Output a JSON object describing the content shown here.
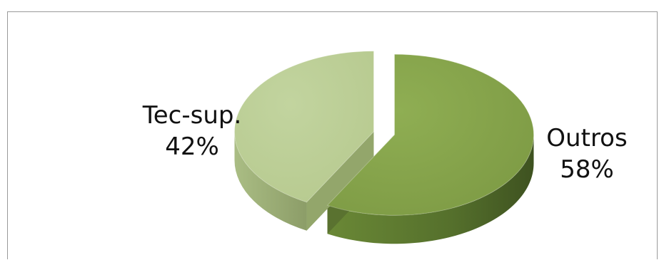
{
  "chart_data": {
    "type": "pie",
    "style": "3d exploded",
    "slices": [
      {
        "label": "Outros",
        "value": 58,
        "percent_label": "58%",
        "color": "#85a24a",
        "side_color": "#5a7230"
      },
      {
        "label": "Tec-sup.",
        "value": 42,
        "percent_label": "42%",
        "color": "#bccf95",
        "side_color": "#93a66b"
      }
    ],
    "legend": "none",
    "data_labels": "outside"
  }
}
